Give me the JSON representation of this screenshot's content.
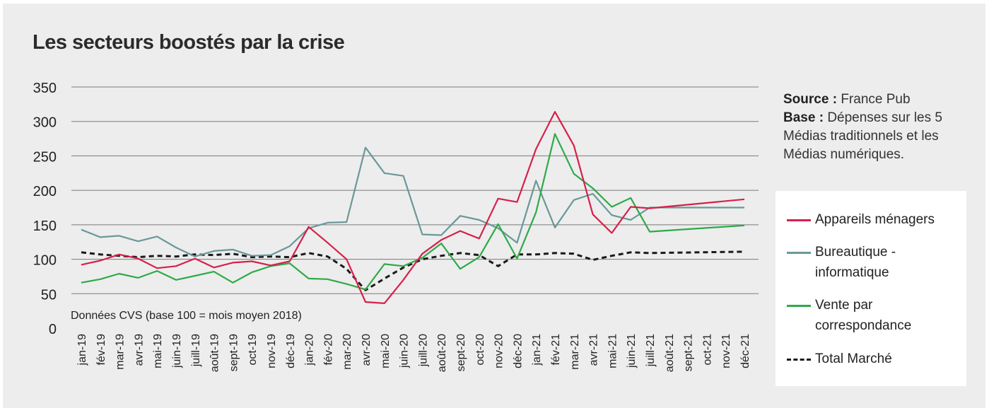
{
  "chart_data": {
    "type": "line",
    "title": "Les secteurs boostés par la crise",
    "annotation": "Données CVS (base 100 = mois moyen 2018)",
    "source_label": "Source :",
    "source_text": "France Pub",
    "base_label": "Base :",
    "base_text": "Dépenses sur les 5 Médias traditionnels et les Médias numériques.",
    "ylim": [
      0,
      350
    ],
    "yticks": [
      0,
      50,
      100,
      150,
      200,
      250,
      300,
      350
    ],
    "grid": true,
    "legend_position": "right",
    "categories": [
      "jan-19",
      "fév-19",
      "mar-19",
      "avr-19",
      "mai-19",
      "juin-19",
      "juill-19",
      "août-19",
      "sept-19",
      "oct-19",
      "nov-19",
      "déc-19",
      "jan-20",
      "fév-20",
      "mar-20",
      "avr-20",
      "mai-20",
      "juin-20",
      "juill-20",
      "août-20",
      "sept-20",
      "oct-20",
      "nov-20",
      "déc-20",
      "jan-21",
      "fév-21",
      "mar-21",
      "avr-21",
      "mai-21",
      "juin-21",
      "juill-21",
      "août-21",
      "sept-21",
      "oct-21",
      "nov-21",
      "déc-21"
    ],
    "series": [
      {
        "name": "Appareils ménagers",
        "color": "#d6204a",
        "dash": "solid",
        "values": [
          92,
          98,
          107,
          101,
          87,
          90,
          101,
          88,
          95,
          97,
          91,
          97,
          147,
          124,
          100,
          38,
          36,
          70,
          108,
          128,
          141,
          130,
          188,
          183,
          260,
          314,
          265,
          165,
          138,
          176,
          174,
          null,
          null,
          null,
          null,
          187
        ]
      },
      {
        "name": "Bureautique - informatique",
        "color": "#6a9898",
        "dash": "solid",
        "values": [
          143,
          132,
          134,
          126,
          133,
          117,
          104,
          112,
          114,
          105,
          106,
          119,
          145,
          153,
          154,
          262,
          225,
          221,
          136,
          135,
          163,
          157,
          145,
          124,
          214,
          146,
          186,
          195,
          164,
          157,
          175,
          null,
          null,
          null,
          null,
          175
        ]
      },
      {
        "name": "Vente par correspondance",
        "color": "#2eaa48",
        "dash": "solid",
        "values": [
          66,
          71,
          79,
          73,
          83,
          70,
          76,
          82,
          66,
          81,
          90,
          94,
          72,
          71,
          64,
          56,
          93,
          90,
          102,
          123,
          86,
          103,
          151,
          101,
          168,
          282,
          224,
          203,
          176,
          189,
          140,
          null,
          null,
          null,
          null,
          149
        ]
      },
      {
        "name": "Total Marché",
        "color": "#1a1a1a",
        "dash": "dashed",
        "values": [
          110,
          107,
          105,
          103,
          105,
          104,
          107,
          106,
          108,
          103,
          104,
          103,
          109,
          104,
          86,
          55,
          72,
          88,
          100,
          105,
          109,
          106,
          90,
          107,
          107,
          109,
          108,
          99,
          105,
          110,
          109,
          null,
          null,
          null,
          null,
          111
        ]
      }
    ]
  }
}
